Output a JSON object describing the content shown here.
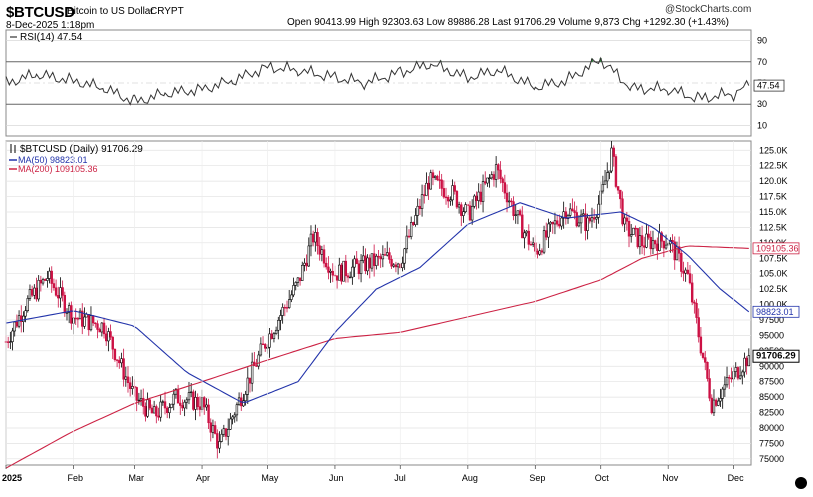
{
  "header": {
    "ticker": "$BTCUSD",
    "description": "Bitcoin to US Dollar",
    "exchange": "CRYPT",
    "date": "8-Dec-2025 1:18pm",
    "ohlc": "Open 90413.99  High 92303.63  Low 89886.28  Last 91706.29  Volume 9,873  Chg +1292.30 (+1.43%)",
    "credit": "@StockCharts.com"
  },
  "rsi": {
    "label": "RSI(14) 47.54",
    "ticks": [
      "90",
      "70",
      "50",
      "30",
      "10"
    ],
    "current_label": "47.54",
    "current": 47.54
  },
  "price": {
    "legend_title": "$BTCUSD (Daily) 91706.29",
    "ma50_label": "MA(50) 98823.01",
    "ma200_label": "MA(200) 109105.36",
    "y_tick_labels": [
      "125.0K",
      "122.5K",
      "120.0K",
      "117.5K",
      "115.0K",
      "112.5K",
      "110.0K",
      "107.5K",
      "105.0K",
      "102.5K",
      "100.0K",
      "97500",
      "95000",
      "92500",
      "90000",
      "87500",
      "85000",
      "82500",
      "80000",
      "77500",
      "75000"
    ],
    "tag_ma200": "109105.36",
    "tag_ma50": "98823.01",
    "tag_last": "91706.29"
  },
  "x_axis": {
    "labels": [
      "2025",
      "Feb",
      "Mar",
      "Apr",
      "May",
      "Jun",
      "Jul",
      "Aug",
      "Sep",
      "Oct",
      "Nov",
      "Dec"
    ]
  },
  "colors": {
    "up": "#000000",
    "down": "#cc1144",
    "ma50": "#2233aa",
    "ma200": "#cc2244",
    "rsi": "#333333",
    "rsi_overbought": "#2a8a3a",
    "rsi_oversold": "#cc2255"
  },
  "chart_data": [
    {
      "type": "line",
      "title": "RSI(14) 47.54",
      "series": [
        {
          "name": "RSI(14)",
          "x": [
            "2025-01-01",
            "2025-01-15",
            "2025-02-01",
            "2025-02-15",
            "2025-03-01",
            "2025-03-15",
            "2025-04-01",
            "2025-04-15",
            "2025-05-01",
            "2025-05-15",
            "2025-06-01",
            "2025-06-15",
            "2025-07-01",
            "2025-07-15",
            "2025-08-01",
            "2025-08-15",
            "2025-09-01",
            "2025-09-15",
            "2025-10-01",
            "2025-10-15",
            "2025-11-01",
            "2025-11-15",
            "2025-12-01",
            "2025-12-08"
          ],
          "values": [
            50,
            58,
            52,
            45,
            32,
            40,
            44,
            52,
            65,
            62,
            55,
            50,
            60,
            68,
            55,
            62,
            46,
            52,
            72,
            45,
            44,
            35,
            40,
            47.54
          ]
        }
      ],
      "ylim": [
        0,
        100
      ]
    },
    {
      "type": "line",
      "title": "$BTCUSD (Daily) 91706.29",
      "series": [
        {
          "name": "$BTCUSD (Daily)",
          "x": [
            "2025-01-01",
            "2025-01-10",
            "2025-01-20",
            "2025-02-01",
            "2025-02-15",
            "2025-03-01",
            "2025-03-10",
            "2025-03-20",
            "2025-04-01",
            "2025-04-09",
            "2025-04-20",
            "2025-05-01",
            "2025-05-15",
            "2025-05-22",
            "2025-06-01",
            "2025-06-15",
            "2025-06-25",
            "2025-07-01",
            "2025-07-14",
            "2025-07-25",
            "2025-08-01",
            "2025-08-14",
            "2025-08-25",
            "2025-09-01",
            "2025-09-15",
            "2025-09-25",
            "2025-10-01",
            "2025-10-06",
            "2025-10-12",
            "2025-10-20",
            "2025-11-01",
            "2025-11-10",
            "2025-11-21",
            "2025-12-01",
            "2025-12-08"
          ],
          "values": [
            94000,
            100000,
            104500,
            98000,
            96500,
            85000,
            82000,
            85000,
            84000,
            77000,
            86000,
            94500,
            103500,
            111000,
            105000,
            106500,
            107500,
            107000,
            120000,
            118000,
            114500,
            122000,
            113000,
            108500,
            115500,
            113000,
            117000,
            124500,
            112500,
            110000,
            110500,
            104500,
            84000,
            88500,
            91706
          ]
        },
        {
          "name": "MA(50)",
          "x": [
            "2025-01-01",
            "2025-02-01",
            "2025-03-01",
            "2025-03-25",
            "2025-04-20",
            "2025-05-15",
            "2025-06-01",
            "2025-06-20",
            "2025-07-10",
            "2025-08-01",
            "2025-08-25",
            "2025-09-15",
            "2025-10-10",
            "2025-10-25",
            "2025-11-10",
            "2025-11-25",
            "2025-12-08"
          ],
          "values": [
            97000,
            99000,
            96500,
            89000,
            84000,
            87500,
            95500,
            102500,
            106000,
            113000,
            116500,
            114000,
            115000,
            112500,
            108000,
            102500,
            98823
          ]
        },
        {
          "name": "MA(200)",
          "x": [
            "2025-01-01",
            "2025-02-01",
            "2025-03-01",
            "2025-04-01",
            "2025-05-01",
            "2025-06-01",
            "2025-07-01",
            "2025-08-01",
            "2025-09-01",
            "2025-10-01",
            "2025-10-20",
            "2025-11-10",
            "2025-12-08"
          ],
          "values": [
            73500,
            79500,
            84000,
            87500,
            91000,
            94500,
            95500,
            98000,
            100500,
            104000,
            107500,
            109500,
            109105
          ]
        }
      ],
      "ylim": [
        74000,
        126500
      ]
    }
  ]
}
